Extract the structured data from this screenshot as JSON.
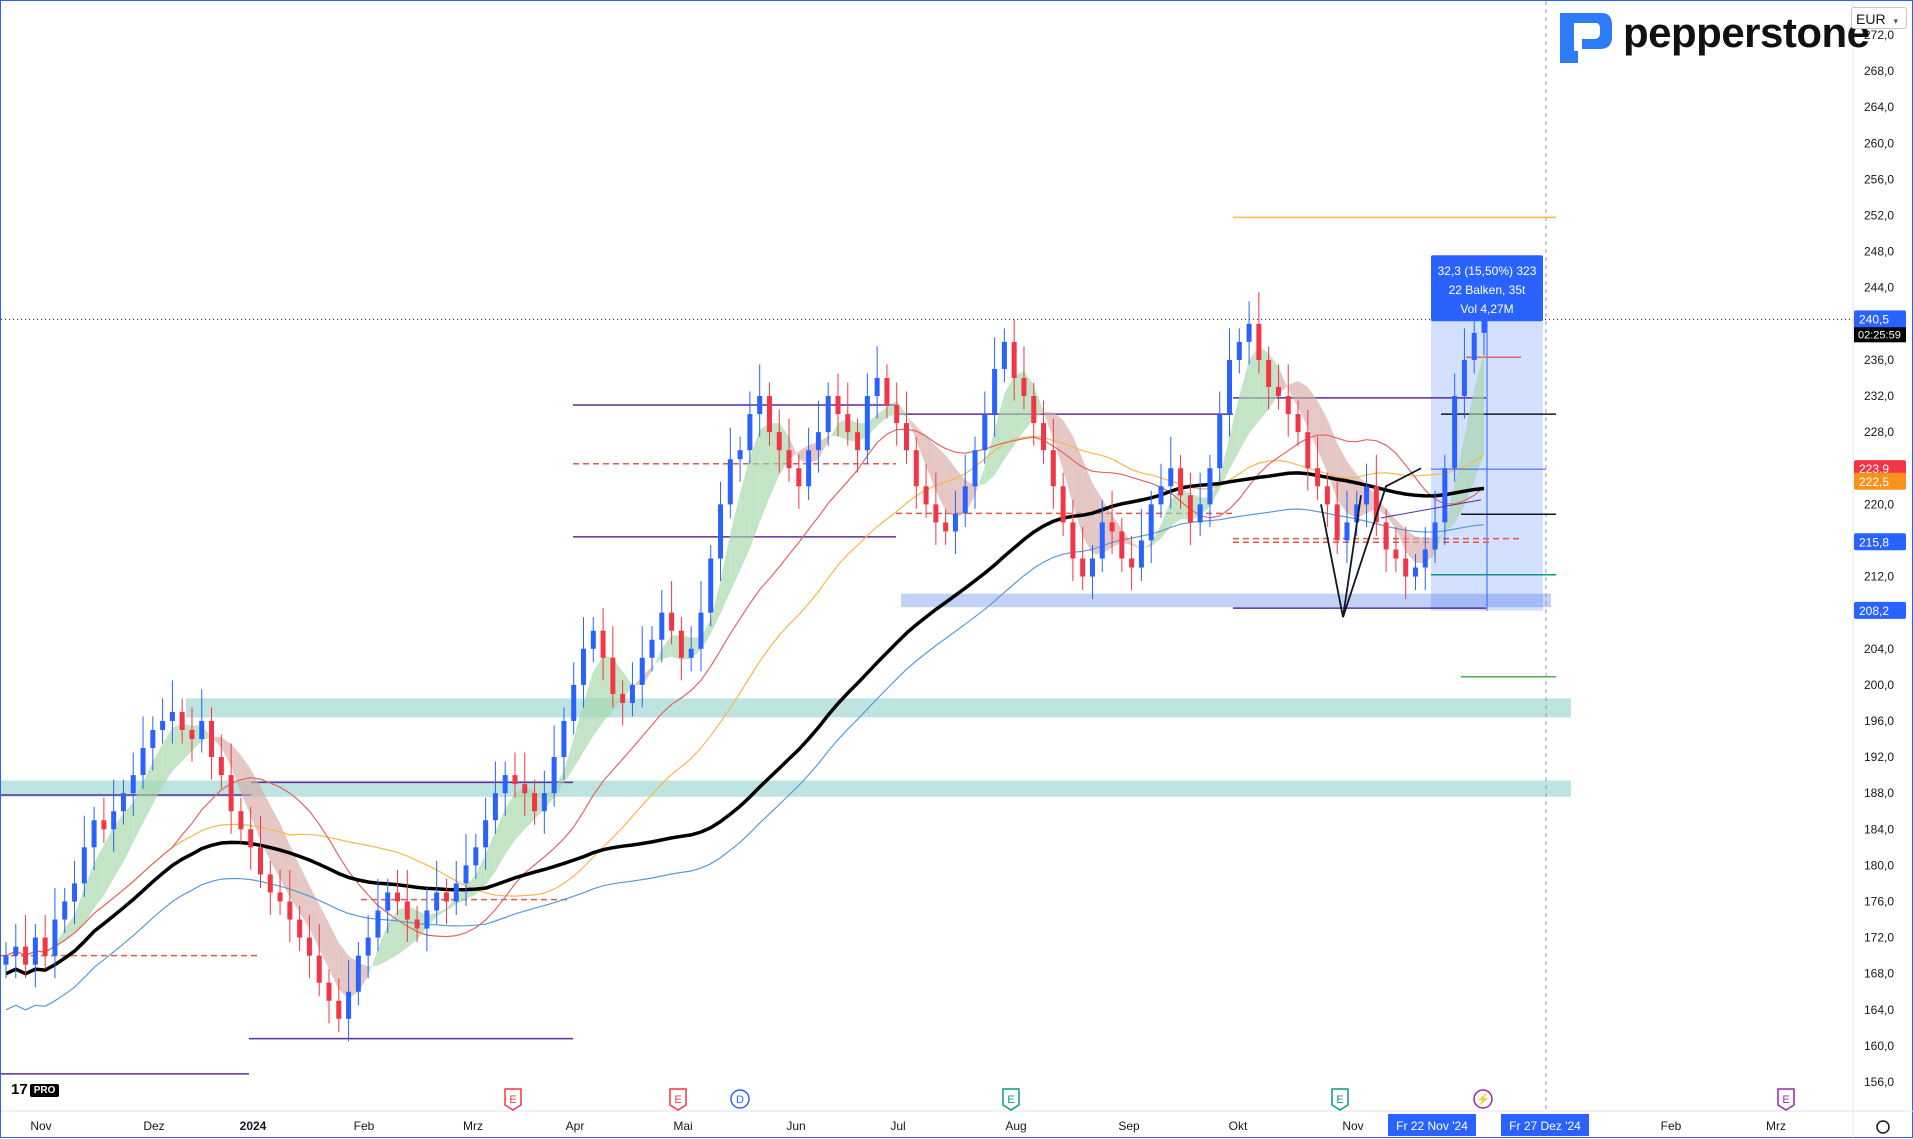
{
  "brand": {
    "name": "pepperstone",
    "tv_badge": "PRO",
    "tv_mark": "17"
  },
  "currency": "EUR",
  "chart_data": {
    "type": "candlestick",
    "ylim": [
      154,
      274
    ],
    "y_ticks": [
      156,
      160,
      164,
      168,
      172,
      176,
      180,
      184,
      188,
      192,
      196,
      200,
      204,
      208,
      212,
      216,
      220,
      224,
      228,
      232,
      236,
      240,
      244,
      248,
      252,
      256,
      260,
      264,
      268,
      272
    ],
    "x_ticks": [
      "Nov",
      "Dez",
      "2024",
      "Feb",
      "Mrz",
      "Apr",
      "Mai",
      "Jun",
      "Jul",
      "Aug",
      "Sep",
      "Okt",
      "Nov",
      "Fr 22 Nov '24",
      "Fr 27 Dez '24",
      "Feb",
      "Mrz"
    ],
    "price_labels": [
      {
        "value": "240,5",
        "sub": "02:25:59",
        "color": "#2962ff"
      },
      {
        "value": "223,9",
        "color": "#f23645"
      },
      {
        "value": "222,5",
        "color": "#f7931a"
      },
      {
        "value": "215,8",
        "color": "#2962ff"
      },
      {
        "value": "208,2",
        "color": "#2962ff"
      }
    ],
    "measure_box": {
      "line1": "32,3 (15,50%) 323",
      "line2": "22 Balken, 35t",
      "line3": "Vol 4,27M"
    },
    "event_markers": [
      {
        "letter": "E",
        "color": "#f23645"
      },
      {
        "letter": "E",
        "color": "#f23645"
      },
      {
        "letter": "D",
        "color": "#2962ff"
      },
      {
        "letter": "E",
        "color": "#089981"
      },
      {
        "letter": "E",
        "color": "#089981"
      },
      {
        "letter": "⚡",
        "color": "#9c27b0"
      },
      {
        "letter": "E",
        "color": "#9c27b0"
      }
    ],
    "series_close": [
      170,
      171,
      169,
      172,
      170,
      174,
      176,
      178,
      182,
      185,
      184,
      186,
      188,
      190,
      193,
      195,
      196,
      197,
      195,
      194,
      196,
      192,
      190,
      186,
      184,
      182,
      179,
      177,
      176,
      174,
      172,
      170,
      167,
      165,
      163,
      166,
      170,
      172,
      175,
      177,
      176,
      174,
      173,
      175,
      177,
      176,
      178,
      180,
      182,
      185,
      188,
      190,
      189,
      188,
      186,
      188,
      192,
      196,
      200,
      204,
      206,
      203,
      199,
      198,
      200,
      203,
      205,
      208,
      206,
      203,
      204,
      208,
      214,
      220,
      225,
      226,
      230,
      232,
      228,
      226,
      224,
      222,
      226,
      228,
      232,
      230,
      228,
      226,
      232,
      234,
      231,
      229,
      226,
      222,
      220,
      218,
      217,
      219,
      222,
      226,
      230,
      235,
      238,
      234,
      232,
      229,
      226,
      222,
      218,
      214,
      212,
      214,
      218,
      217,
      214,
      213,
      216,
      220,
      222,
      224,
      221,
      218,
      220,
      224,
      230,
      236,
      238,
      240,
      236,
      233,
      232,
      230,
      228,
      224,
      222,
      220,
      216,
      218,
      220,
      222,
      218,
      215,
      214,
      212,
      213,
      215,
      218,
      224,
      232,
      236,
      239,
      240.5
    ]
  }
}
